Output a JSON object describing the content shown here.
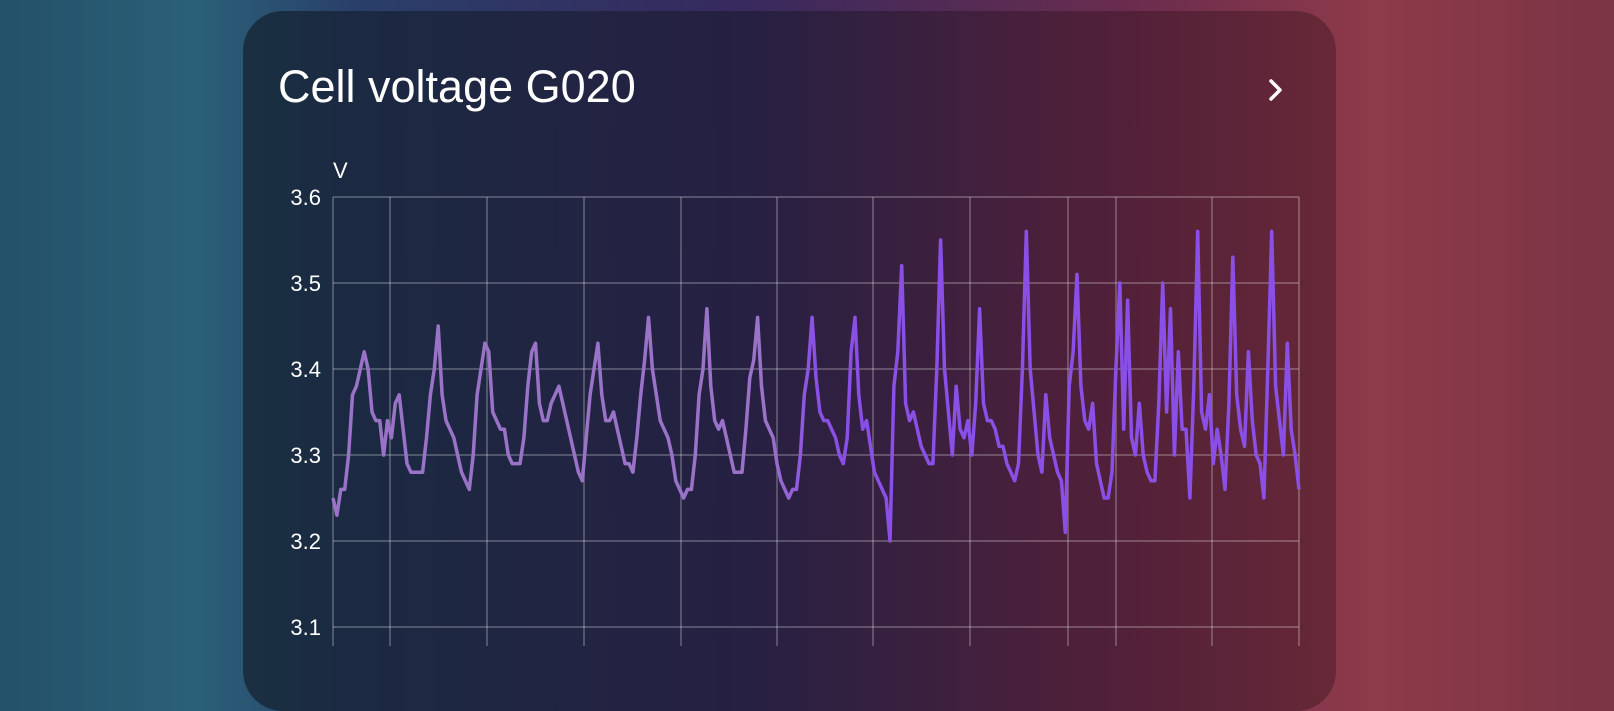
{
  "card": {
    "title": "Cell voltage G020",
    "more_icon": "chevron-right-icon"
  },
  "chart_data": {
    "type": "line",
    "title": "Cell voltage G020",
    "ylabel": "V",
    "ylim": [
      3.1,
      3.6
    ],
    "yticks": [
      "3.6",
      "3.5",
      "3.4",
      "3.3",
      "3.2",
      "3.1"
    ],
    "grid": true,
    "colors": {
      "early": "#9a72c8",
      "late": "#8a4fe6"
    },
    "values": [
      3.25,
      3.23,
      3.26,
      3.26,
      3.3,
      3.37,
      3.38,
      3.4,
      3.42,
      3.4,
      3.35,
      3.34,
      3.34,
      3.3,
      3.34,
      3.32,
      3.36,
      3.37,
      3.33,
      3.29,
      3.28,
      3.28,
      3.28,
      3.28,
      3.32,
      3.37,
      3.4,
      3.45,
      3.37,
      3.34,
      3.33,
      3.32,
      3.3,
      3.28,
      3.27,
      3.26,
      3.3,
      3.37,
      3.4,
      3.43,
      3.42,
      3.35,
      3.34,
      3.33,
      3.33,
      3.3,
      3.29,
      3.29,
      3.29,
      3.32,
      3.38,
      3.42,
      3.43,
      3.36,
      3.34,
      3.34,
      3.36,
      3.37,
      3.38,
      3.36,
      3.34,
      3.32,
      3.3,
      3.28,
      3.27,
      3.32,
      3.37,
      3.4,
      3.43,
      3.37,
      3.34,
      3.34,
      3.35,
      3.33,
      3.31,
      3.29,
      3.29,
      3.28,
      3.32,
      3.37,
      3.41,
      3.46,
      3.4,
      3.37,
      3.34,
      3.33,
      3.32,
      3.3,
      3.27,
      3.26,
      3.25,
      3.26,
      3.26,
      3.3,
      3.37,
      3.4,
      3.47,
      3.38,
      3.34,
      3.33,
      3.34,
      3.32,
      3.3,
      3.28,
      3.28,
      3.28,
      3.33,
      3.39,
      3.41,
      3.46,
      3.38,
      3.34,
      3.33,
      3.32,
      3.29,
      3.27,
      3.26,
      3.25,
      3.26,
      3.26,
      3.3,
      3.37,
      3.4,
      3.46,
      3.39,
      3.35,
      3.34,
      3.34,
      3.33,
      3.32,
      3.3,
      3.29,
      3.32,
      3.42,
      3.46,
      3.37,
      3.33,
      3.34,
      3.31,
      3.28,
      3.27,
      3.26,
      3.25,
      3.2,
      3.38,
      3.42,
      3.52,
      3.36,
      3.34,
      3.35,
      3.33,
      3.31,
      3.3,
      3.29,
      3.29,
      3.4,
      3.55,
      3.4,
      3.35,
      3.3,
      3.38,
      3.33,
      3.32,
      3.34,
      3.3,
      3.36,
      3.47,
      3.36,
      3.34,
      3.34,
      3.33,
      3.31,
      3.31,
      3.29,
      3.28,
      3.27,
      3.29,
      3.4,
      3.56,
      3.4,
      3.35,
      3.3,
      3.28,
      3.37,
      3.32,
      3.3,
      3.28,
      3.27,
      3.21,
      3.38,
      3.42,
      3.51,
      3.38,
      3.34,
      3.33,
      3.36,
      3.29,
      3.27,
      3.25,
      3.25,
      3.28,
      3.4,
      3.5,
      3.33,
      3.48,
      3.32,
      3.3,
      3.36,
      3.3,
      3.28,
      3.27,
      3.27,
      3.36,
      3.5,
      3.35,
      3.47,
      3.3,
      3.42,
      3.33,
      3.33,
      3.25,
      3.38,
      3.56,
      3.35,
      3.33,
      3.37,
      3.29,
      3.33,
      3.3,
      3.26,
      3.36,
      3.53,
      3.37,
      3.33,
      3.31,
      3.42,
      3.34,
      3.3,
      3.29,
      3.25,
      3.4,
      3.56,
      3.38,
      3.34,
      3.3,
      3.43,
      3.33,
      3.3,
      3.26
    ]
  }
}
